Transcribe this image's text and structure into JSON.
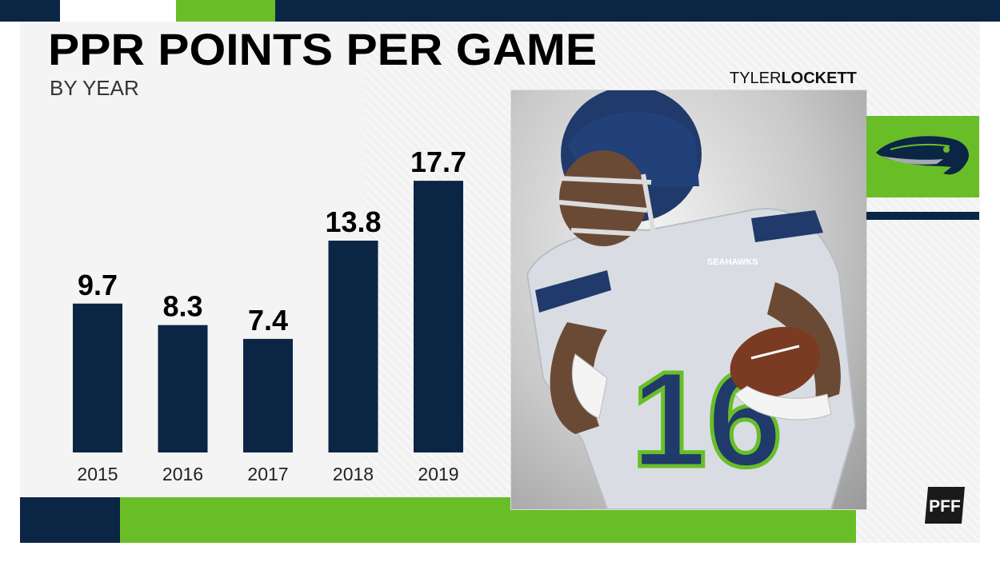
{
  "header": {
    "title": "PPR POINTS PER GAME",
    "subtitle": "BY YEAR"
  },
  "player": {
    "first_name": "TYLER",
    "last_name": "LOCKETT",
    "jersey_number": "16",
    "team_wordmark": "SEAHAWKS"
  },
  "branding": {
    "team_logo_icon": "seahawks-logo-icon",
    "publisher_logo_text": "PFF",
    "navy": "#0b2545",
    "green": "#69be28"
  },
  "chart_data": {
    "type": "bar",
    "title": "PPR POINTS PER GAME",
    "subtitle": "BY YEAR",
    "categories": [
      "2015",
      "2016",
      "2017",
      "2018",
      "2019"
    ],
    "values": [
      9.7,
      8.3,
      7.4,
      13.8,
      17.7
    ],
    "data_labels": [
      "9.7",
      "8.3",
      "7.4",
      "13.8",
      "17.7"
    ],
    "xlabel": "",
    "ylabel": "",
    "ylim": [
      0,
      20
    ],
    "grid": false,
    "legend": "none",
    "bar_color": "#0b2545"
  }
}
